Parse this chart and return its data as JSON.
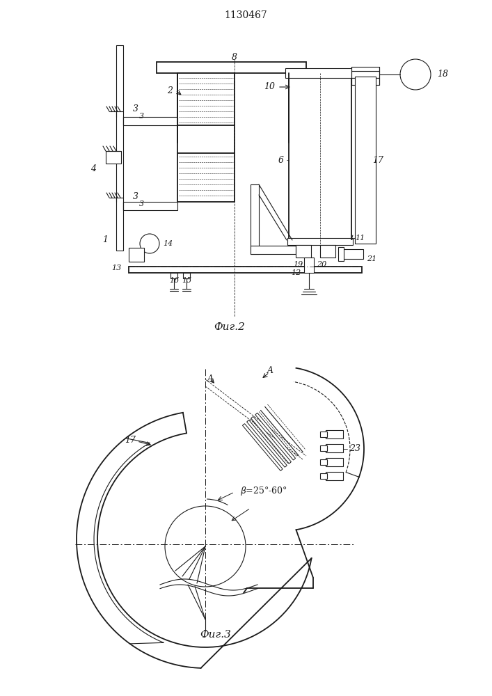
{
  "title": "1130467",
  "fig2_caption": "Фиг.2",
  "fig3_caption": "Фиг.3",
  "bg_color": "#ffffff",
  "line_color": "#1a1a1a",
  "fig_width": 7.07,
  "fig_height": 10.0,
  "dpi": 100
}
